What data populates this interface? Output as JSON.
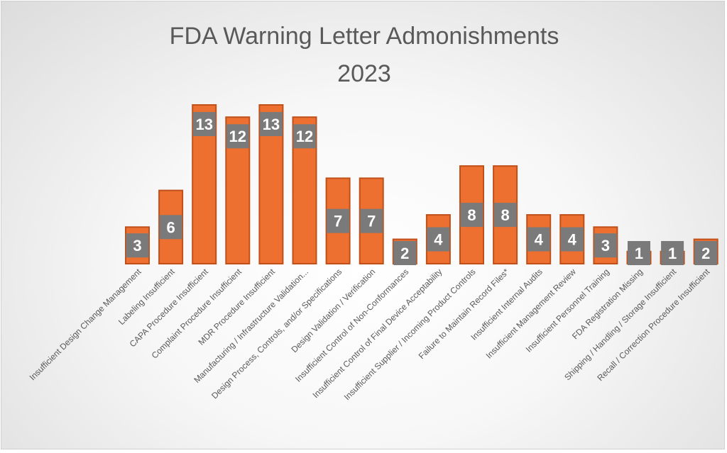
{
  "chart_data": {
    "type": "bar",
    "title": "FDA Warning Letter Admonishments",
    "subtitle": "2023",
    "categories": [
      "Insufficient Design Change Management",
      "Labeling Insufficient",
      "CAPA Procedure Insufficient",
      "Complaint Procedure Insufficient",
      "MDR Procedure Insufficient",
      "Manufacturing / Infrastructure Validation...",
      "Design Process, Controls, and/or Specifications",
      "Design Validation / Verification",
      "Insufficient Control of Non-Conformances",
      "Insufficient Control of Final Device Acceptability",
      "Insufficient Supplier / Incoming Product Controls",
      "Failure to Maintain Record Files*",
      "Insufficient Internal Audits",
      "Insufficient Management Review",
      "Insufficient Personnel Training",
      "FDA Registration Missing",
      "Shipping / Handling / Storage Insufficient",
      "Recall / Correction Procedure Insufficient"
    ],
    "values": [
      3,
      6,
      13,
      12,
      13,
      12,
      7,
      7,
      2,
      4,
      8,
      8,
      4,
      4,
      3,
      1,
      1,
      2
    ],
    "ylim": [
      0,
      13
    ],
    "grid": false,
    "legend": "none",
    "data_labels": true,
    "colors": {
      "bar": "#ed7031",
      "bar_border": "#c0501a",
      "label_box": "#7a7a7a"
    }
  }
}
